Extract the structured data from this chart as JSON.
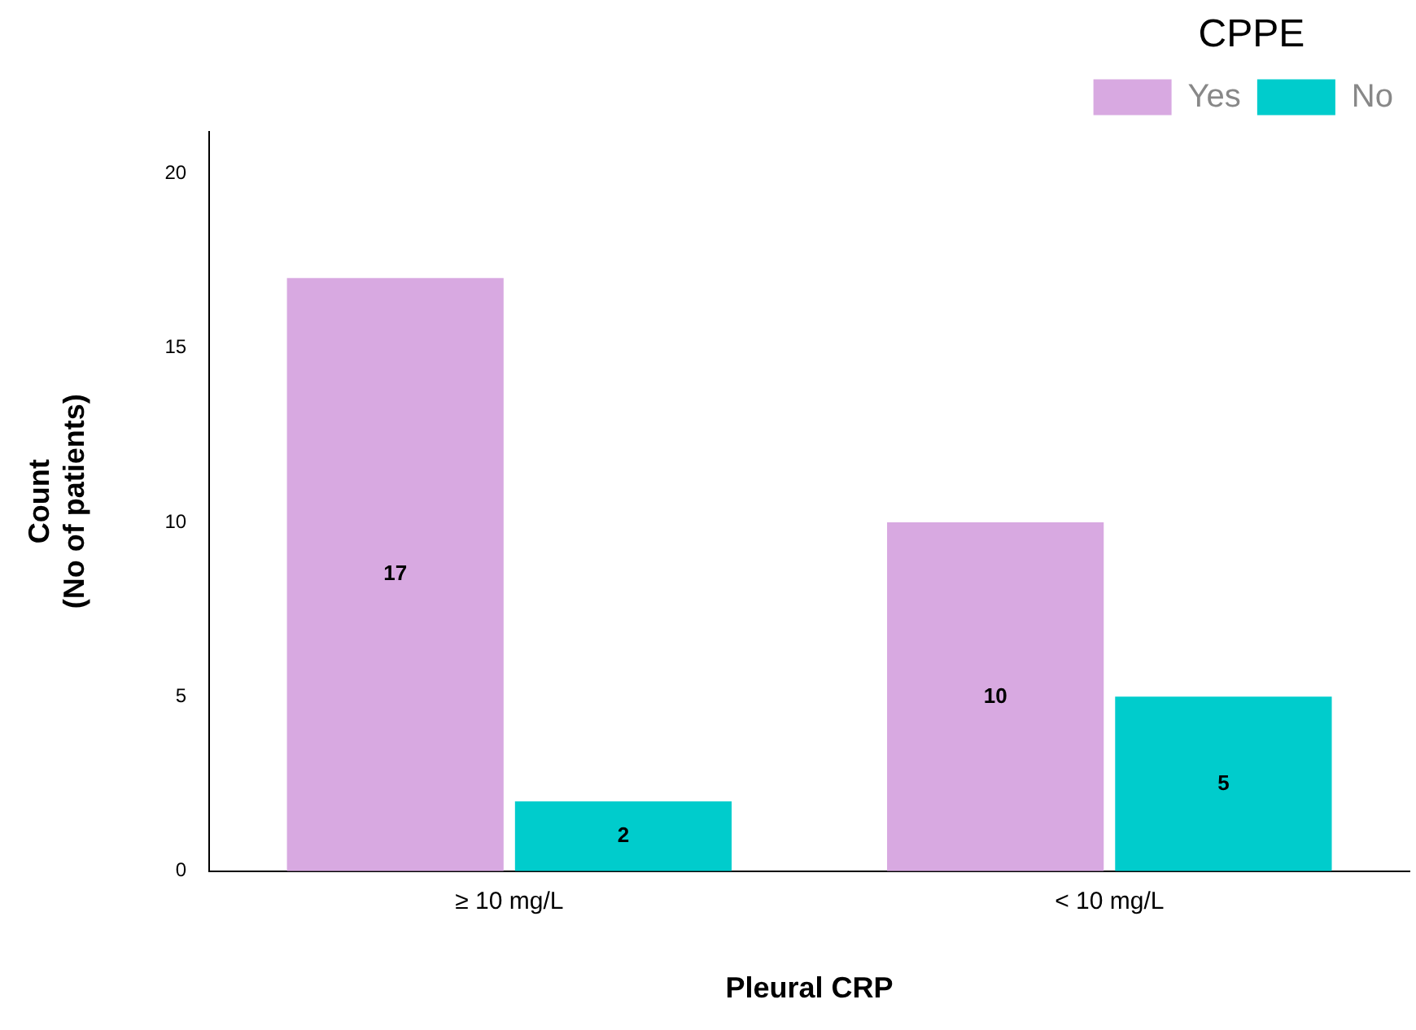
{
  "chart_data": {
    "type": "bar",
    "xlabel": "Pleural CRP",
    "ylabel": "Count\n(No of patients)",
    "legend_title": "CPPE",
    "categories": [
      "≥ 10 mg/L",
      "< 10 mg/L"
    ],
    "series": [
      {
        "name": "Yes",
        "color": "#d8a9e1",
        "values": [
          17,
          10
        ]
      },
      {
        "name": "No",
        "color": "#00cccc",
        "values": [
          2,
          5
        ]
      }
    ],
    "ylim": [
      0,
      21.2
    ],
    "yticks": [
      0,
      5,
      10,
      15,
      20
    ],
    "grid": false,
    "legend": "top right",
    "data_labels": true
  }
}
